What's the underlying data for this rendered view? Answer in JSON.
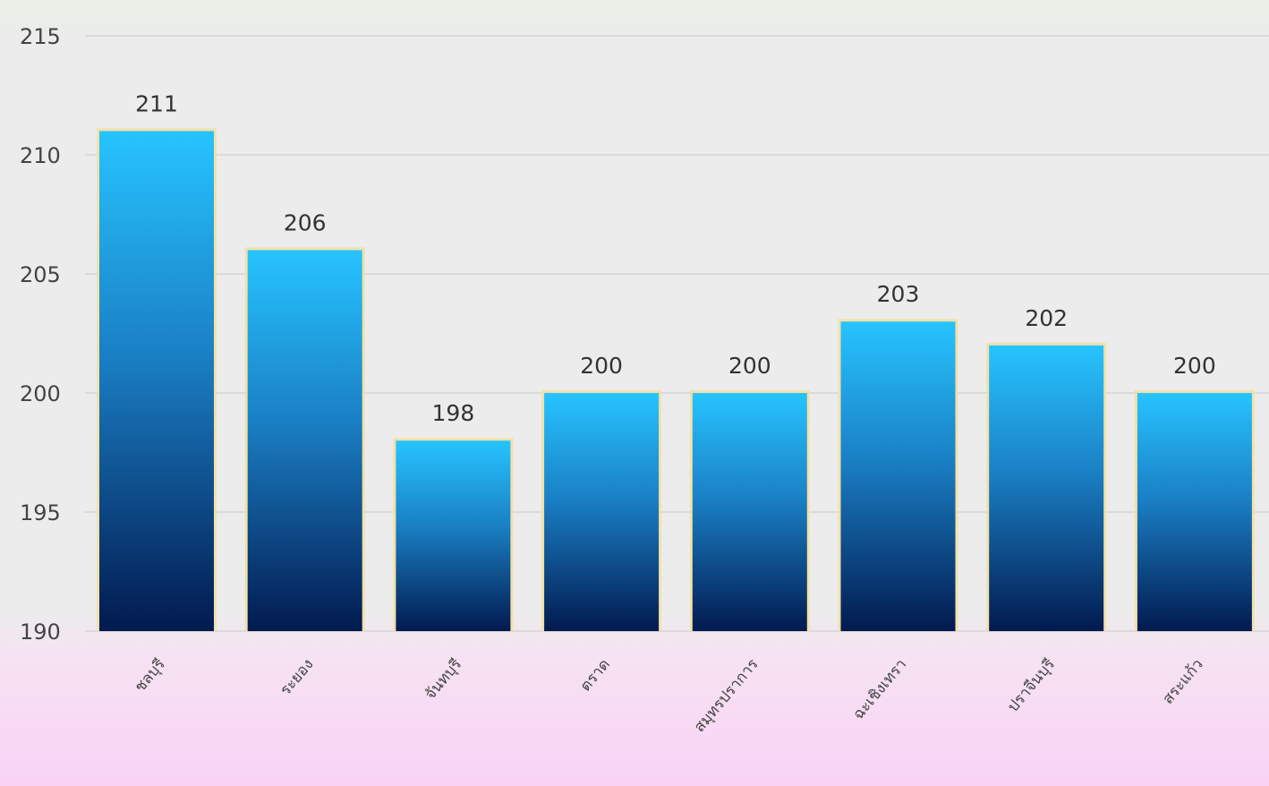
{
  "chart_data": {
    "type": "bar",
    "categories": [
      "ชลบุรี",
      "ระยอง",
      "จันทบุรี",
      "ตราด",
      "สมุทรปราการ",
      "ฉะเชิงเทรา",
      "ปราจีนบุรี",
      "สระแก้ว"
    ],
    "values": [
      211,
      206,
      198,
      200,
      200,
      203,
      202,
      200
    ],
    "ylim": [
      190,
      215
    ],
    "yticks": [
      190,
      195,
      200,
      205,
      210,
      215
    ],
    "grid": true,
    "title": "",
    "xlabel": "",
    "ylabel": "",
    "colors": {
      "bar_top": "#27c4ff",
      "bar_bottom": "#021a4f",
      "bar_edge": "#f3dfa0",
      "grid": "#d4d4d4",
      "text": "#333333"
    }
  }
}
